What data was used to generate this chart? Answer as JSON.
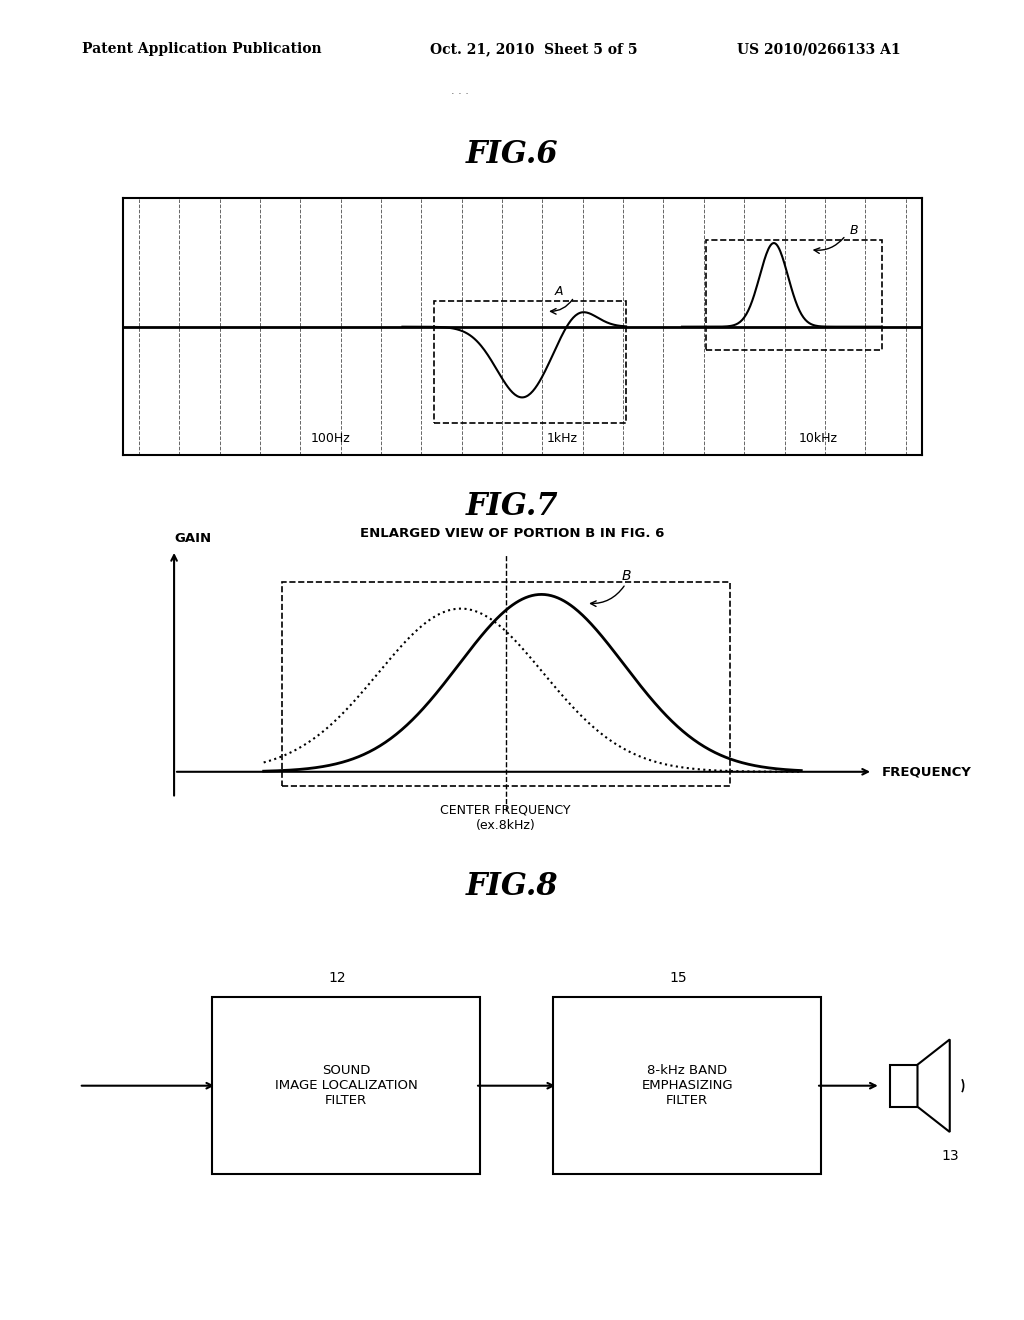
{
  "bg_color": "#ffffff",
  "header_left": "Patent Application Publication",
  "header_mid": "Oct. 21, 2010  Sheet 5 of 5",
  "header_right": "US 2010/0266133 A1",
  "fig6_title": "FIG.6",
  "fig7_title": "FIG.7",
  "fig7_subtitle": "ENLARGED VIEW OF PORTION B IN FIG. 6",
  "fig8_title": "FIG.8",
  "fig6_labels": [
    "100Hz",
    "1kHz",
    "10kHz"
  ],
  "fig7_xlabel": "FREQUENCY",
  "fig7_ylabel": "GAIN",
  "fig7_center_label": "CENTER FREQUENCY\n(ex.8kHz)",
  "fig8_box1": "SOUND\nIMAGE LOCALIZATION\nFILTER",
  "fig8_box2": "8-kHz BAND\nEMPHASIZING\nFILTER",
  "fig8_label12": "12",
  "fig8_label15": "15",
  "fig8_label13": "13"
}
